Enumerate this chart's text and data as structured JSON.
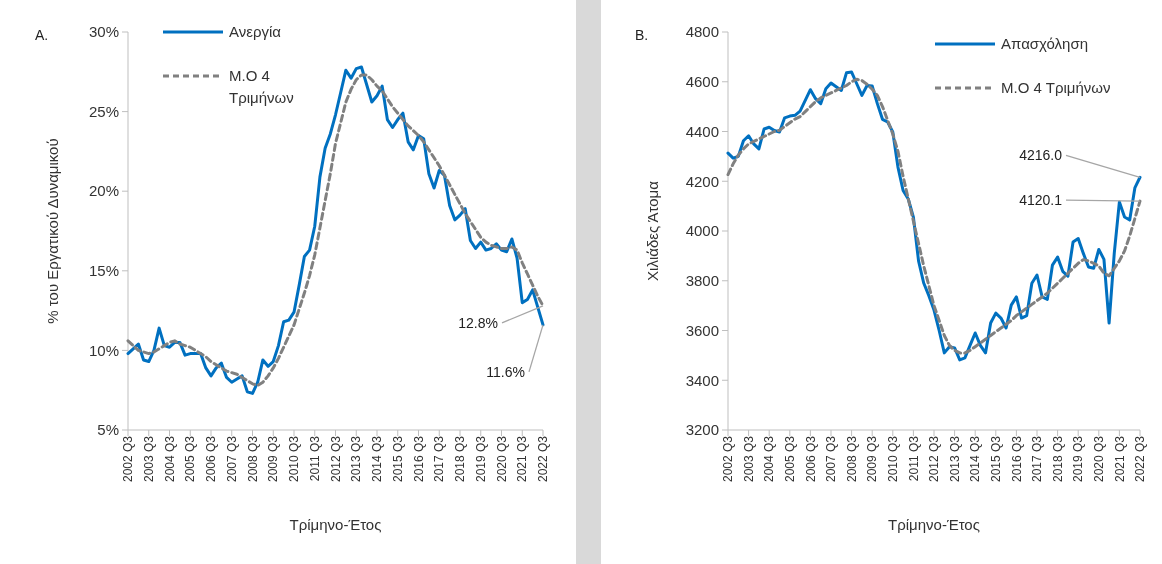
{
  "chart_data": [
    {
      "type": "line",
      "xlabel": "Τρίμηνο-Έτος",
      "ylabel": "% του Εργατικού Δυναμικού",
      "legend": "top left",
      "annotations": [
        "A.",
        {
          "text": "12.8%",
          "x": "2022 Q3",
          "y": 12.8
        },
        {
          "text": "11.6%",
          "x": "2022 Q3",
          "y": 11.6
        }
      ],
      "categories": [
        "2002 Q3",
        null,
        null,
        null,
        "2003 Q3",
        null,
        null,
        null,
        "2004 Q3",
        null,
        null,
        null,
        "2005 Q3",
        null,
        null,
        null,
        "2006 Q3",
        null,
        null,
        null,
        "2007 Q3",
        null,
        null,
        null,
        "2008 Q3",
        null,
        null,
        null,
        "2009 Q3",
        null,
        null,
        null,
        "2010 Q3",
        null,
        null,
        null,
        "2011 Q3",
        null,
        null,
        null,
        "2012 Q3",
        null,
        null,
        null,
        "2013 Q3",
        null,
        null,
        null,
        "2014 Q3",
        null,
        null,
        null,
        "2015 Q3",
        null,
        null,
        null,
        "2016 Q3",
        null,
        null,
        null,
        "2017 Q3",
        null,
        null,
        null,
        "2018 Q3",
        null,
        null,
        null,
        "2019 Q3",
        null,
        null,
        null,
        "2020 Q3",
        null,
        null,
        null,
        "2021 Q3",
        null,
        null,
        null,
        "2022 Q3"
      ],
      "ylim": [
        5,
        30
      ],
      "yticks": [
        {
          "value": 5,
          "label": "5%"
        },
        {
          "value": 10,
          "label": "10%"
        },
        {
          "value": 15,
          "label": "15%"
        },
        {
          "value": 20,
          "label": "20%"
        },
        {
          "value": 25,
          "label": "25%"
        },
        {
          "value": 30,
          "label": "30%"
        }
      ],
      "series": [
        {
          "name": "Ανεργία",
          "color": "#0070c0",
          "line_style": "solid",
          "values": [
            9.8,
            10.1,
            10.4,
            9.4,
            9.3,
            10.0,
            11.4,
            10.3,
            10.2,
            10.5,
            10.5,
            9.7,
            9.8,
            9.8,
            9.8,
            8.9,
            8.4,
            8.9,
            9.2,
            8.3,
            8.0,
            8.2,
            8.4,
            7.4,
            7.3,
            8.0,
            9.4,
            9.0,
            9.3,
            10.3,
            11.8,
            11.9,
            12.4,
            14.1,
            15.9,
            16.3,
            17.8,
            20.9,
            22.7,
            23.6,
            24.8,
            26.2,
            27.6,
            27.1,
            27.7,
            27.8,
            26.7,
            25.6,
            26.0,
            26.6,
            24.5,
            24.0,
            24.5,
            24.9,
            23.1,
            22.6,
            23.5,
            23.3,
            21.1,
            20.2,
            21.3,
            21.0,
            19.1,
            18.2,
            18.5,
            18.9,
            16.9,
            16.4,
            16.8,
            16.3,
            16.4,
            16.7,
            16.3,
            16.2,
            17.0,
            15.8,
            13.0,
            13.2,
            13.8,
            12.7,
            11.6
          ]
        },
        {
          "name": "Μ.Ο 4 Τριμήνων",
          "color": "#808080",
          "line_style": "dashed",
          "values": [
            10.6,
            10.3,
            10.0,
            9.9,
            9.8,
            9.9,
            10.1,
            10.3,
            10.5,
            10.6,
            10.4,
            10.3,
            10.2,
            10.0,
            9.8,
            9.6,
            9.3,
            9.1,
            8.9,
            8.7,
            8.6,
            8.5,
            8.3,
            8.1,
            7.9,
            7.8,
            8.0,
            8.4,
            8.9,
            9.5,
            10.2,
            10.9,
            11.6,
            12.6,
            13.6,
            14.7,
            16.0,
            17.7,
            19.4,
            21.1,
            23.0,
            24.3,
            25.6,
            26.4,
            27.0,
            27.3,
            27.3,
            27.0,
            26.6,
            26.3,
            25.8,
            25.3,
            24.9,
            24.5,
            24.1,
            23.8,
            23.5,
            23.1,
            22.6,
            22.1,
            21.6,
            21.0,
            20.4,
            19.8,
            19.2,
            18.6,
            18.1,
            17.6,
            17.1,
            16.8,
            16.6,
            16.5,
            16.4,
            16.4,
            16.5,
            16.3,
            15.5,
            14.8,
            14.1,
            13.4,
            12.8
          ]
        }
      ]
    },
    {
      "type": "line",
      "xlabel": "Τρίμηνο-Έτος",
      "ylabel": "Χιλιάδες Άτομα",
      "legend": "top right",
      "annotations": [
        "B.",
        {
          "text": "4216.0",
          "x": "2022 Q3",
          "y": 4216.0
        },
        {
          "text": "4120.1",
          "x": "2022 Q3",
          "y": 4120.1
        }
      ],
      "categories": [
        "2002 Q3",
        null,
        null,
        null,
        "2003 Q3",
        null,
        null,
        null,
        "2004 Q3",
        null,
        null,
        null,
        "2005 Q3",
        null,
        null,
        null,
        "2006 Q3",
        null,
        null,
        null,
        "2007 Q3",
        null,
        null,
        null,
        "2008 Q3",
        null,
        null,
        null,
        "2009 Q3",
        null,
        null,
        null,
        "2010 Q3",
        null,
        null,
        null,
        "2011 Q3",
        null,
        null,
        null,
        "2012 Q3",
        null,
        null,
        null,
        "2013 Q3",
        null,
        null,
        null,
        "2014 Q3",
        null,
        null,
        null,
        "2015 Q3",
        null,
        null,
        null,
        "2016 Q3",
        null,
        null,
        null,
        "2017 Q3",
        null,
        null,
        null,
        "2018 Q3",
        null,
        null,
        null,
        "2019 Q3",
        null,
        null,
        null,
        "2020 Q3",
        null,
        null,
        null,
        "2021 Q3",
        null,
        null,
        null,
        "2022 Q3"
      ],
      "ylim": [
        3200,
        4800
      ],
      "yticks": [
        3200,
        3400,
        3600,
        3800,
        4000,
        4200,
        4400,
        4600,
        4800
      ],
      "series": [
        {
          "name": "Απασχόληση",
          "color": "#0070c0",
          "line_style": "solid",
          "values": [
            4313,
            4293,
            4300,
            4363,
            4383,
            4350,
            4330,
            4410,
            4417,
            4404,
            4398,
            4455,
            4462,
            4465,
            4482,
            4525,
            4568,
            4532,
            4512,
            4572,
            4595,
            4580,
            4565,
            4636,
            4639,
            4592,
            4545,
            4585,
            4583,
            4512,
            4449,
            4438,
            4398,
            4257,
            4163,
            4129,
            4056,
            3880,
            3791,
            3740,
            3682,
            3600,
            3510,
            3535,
            3530,
            3482,
            3490,
            3540,
            3590,
            3540,
            3510,
            3630,
            3670,
            3650,
            3610,
            3702,
            3735,
            3650,
            3660,
            3790,
            3823,
            3735,
            3725,
            3863,
            3895,
            3838,
            3818,
            3956,
            3970,
            3910,
            3855,
            3850,
            3926,
            3886,
            3630,
            3910,
            4117,
            4056,
            4044,
            4173,
            4216.0
          ]
        },
        {
          "name": "Μ.Ο 4 Τριμήνων",
          "color": "#808080",
          "line_style": "dashed",
          "values": [
            4227,
            4270,
            4305,
            4330,
            4350,
            4360,
            4370,
            4380,
            4390,
            4400,
            4405,
            4420,
            4435,
            4450,
            4460,
            4480,
            4500,
            4520,
            4535,
            4545,
            4555,
            4565,
            4575,
            4585,
            4600,
            4610,
            4605,
            4590,
            4570,
            4545,
            4500,
            4445,
            4390,
            4320,
            4220,
            4130,
            4040,
            3950,
            3860,
            3780,
            3700,
            3640,
            3580,
            3540,
            3520,
            3510,
            3510,
            3520,
            3535,
            3550,
            3565,
            3580,
            3595,
            3610,
            3625,
            3640,
            3660,
            3675,
            3690,
            3705,
            3720,
            3735,
            3750,
            3770,
            3790,
            3810,
            3830,
            3850,
            3870,
            3885,
            3880,
            3870,
            3860,
            3830,
            3820,
            3850,
            3880,
            3920,
            3980,
            4050,
            4120.1
          ]
        }
      ]
    }
  ]
}
